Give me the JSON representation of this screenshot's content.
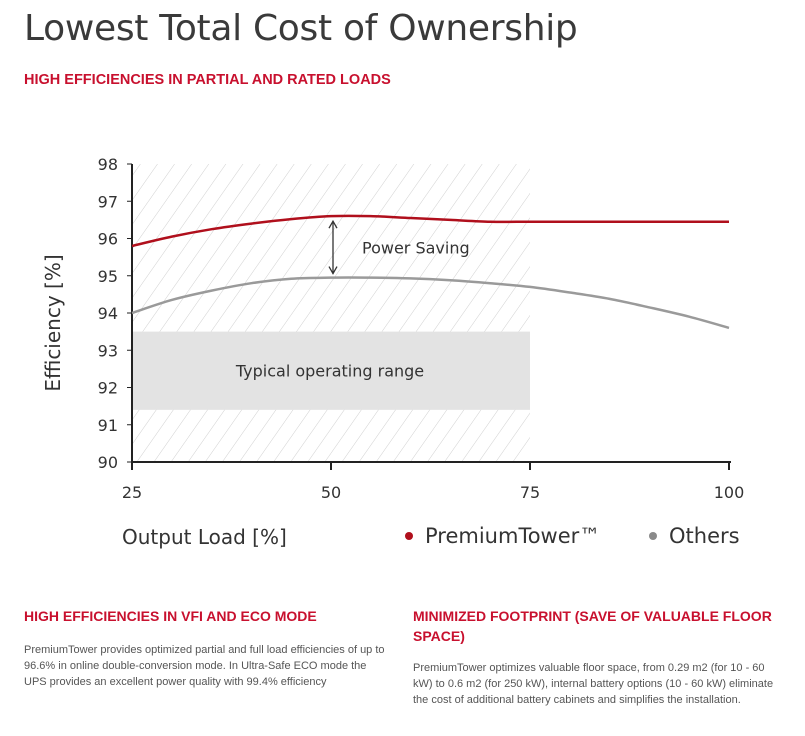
{
  "page": {
    "title": "Lowest Total Cost of Ownership",
    "section_heading": "HIGH EFFICIENCIES IN PARTIAL AND RATED LOADS"
  },
  "chart_data": {
    "type": "line",
    "xlabel": "Output Load [%]",
    "ylabel": "Efficiency [%]",
    "xlim": [
      25,
      100
    ],
    "ylim": [
      90,
      98
    ],
    "x_ticks": [
      25,
      50,
      75,
      100
    ],
    "y_ticks": [
      90,
      91,
      92,
      93,
      94,
      95,
      96,
      97,
      98
    ],
    "series": [
      {
        "name": "PremiumTower™",
        "color": "#b00f1c",
        "x": [
          25,
          30,
          35,
          40,
          45,
          50,
          55,
          60,
          65,
          70,
          75,
          80,
          85,
          90,
          95,
          100
        ],
        "values": [
          95.8,
          96.05,
          96.25,
          96.4,
          96.52,
          96.6,
          96.6,
          96.55,
          96.5,
          96.45,
          96.45,
          96.45,
          96.45,
          96.45,
          96.45,
          96.45
        ]
      },
      {
        "name": "Others",
        "color": "#9a9a9a",
        "x": [
          25,
          30,
          35,
          40,
          45,
          50,
          55,
          60,
          65,
          70,
          75,
          80,
          85,
          90,
          95,
          100
        ],
        "values": [
          94.0,
          94.35,
          94.6,
          94.8,
          94.92,
          94.95,
          94.95,
          94.93,
          94.88,
          94.8,
          94.7,
          94.55,
          94.38,
          94.15,
          93.9,
          93.6
        ]
      }
    ],
    "regions": {
      "hatched": {
        "x_range": [
          25,
          75
        ]
      },
      "typical_operating_range": {
        "label": "Typical operating range",
        "x_range": [
          25,
          75
        ],
        "y_range": [
          91.4,
          93.5
        ]
      }
    },
    "annotation": {
      "label": "Power Saving",
      "x": 50,
      "from": 94.95,
      "to": 96.6
    },
    "legend": {
      "position": "bottom-right",
      "marker_colors": [
        "#b00f1c",
        "#8a8a8a"
      ]
    }
  },
  "columns": {
    "left": {
      "heading": "HIGH EFFICIENCIES IN VFI AND ECO MODE",
      "text": "PremiumTower provides optimized partial and full load efficiencies of up to 96.6% in online double-conversion mode. In Ultra-Safe ECO mode the UPS provides an excellent power quality with 99.4% efficiency"
    },
    "right": {
      "heading": "MINIMIZED FOOTPRINT (SAVE OF VALUABLE FLOOR SPACE)",
      "text": "PremiumTower optimizes valuable floor space, from 0.29 m2 (for 10 - 60 kW) to 0.6 m2 (for 250 kW), internal battery options (10 - 60 kW) eliminate the cost of additional battery cabinets and simplifies the installation."
    }
  }
}
